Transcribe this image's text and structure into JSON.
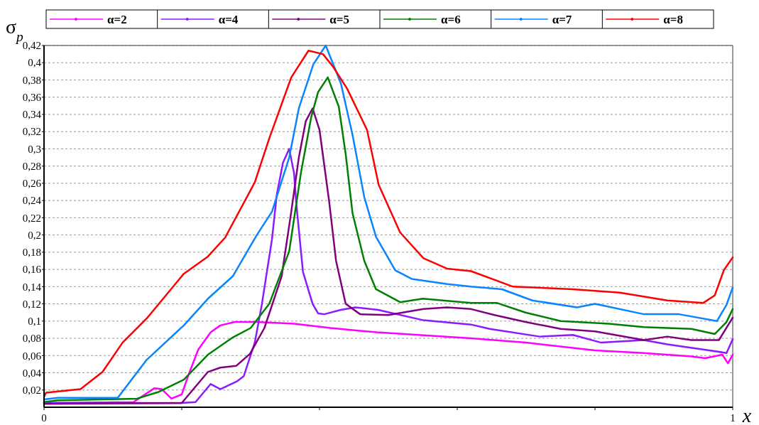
{
  "chart_data": {
    "type": "line",
    "xlabel": "x",
    "ylabel": "σ$_{p}$",
    "xlim": [
      0,
      1
    ],
    "ylim": [
      0,
      0.42
    ],
    "xticks": [
      0,
      {
        "value": 0.2,
        "label": null
      },
      {
        "value": 0.4,
        "label": null
      },
      {
        "value": 0.6,
        "label": null
      },
      {
        "value": 0.8,
        "label": null
      },
      1
    ],
    "yticks": [
      {
        "value": 0.02,
        "label": "0,02"
      },
      {
        "value": 0.04,
        "label": "0,04"
      },
      {
        "value": 0.06,
        "label": "0,06"
      },
      {
        "value": 0.08,
        "label": "0,08"
      },
      {
        "value": 0.1,
        "label": "0,1"
      },
      {
        "value": 0.12,
        "label": "0,12"
      },
      {
        "value": 0.14,
        "label": "0,14"
      },
      {
        "value": 0.16,
        "label": "0,16"
      },
      {
        "value": 0.18,
        "label": "0,18"
      },
      {
        "value": 0.2,
        "label": "0,2"
      },
      {
        "value": 0.22,
        "label": "0,22"
      },
      {
        "value": 0.24,
        "label": "0,24"
      },
      {
        "value": 0.26,
        "label": "0,26"
      },
      {
        "value": 0.28,
        "label": "0,28"
      },
      {
        "value": 0.3,
        "label": "0,3"
      },
      {
        "value": 0.32,
        "label": "0,32"
      },
      {
        "value": 0.34,
        "label": "0,34"
      },
      {
        "value": 0.36,
        "label": "0,36"
      },
      {
        "value": 0.38,
        "label": "0,38"
      },
      {
        "value": 0.4,
        "label": "0,4"
      },
      {
        "value": 0.42,
        "label": "0,42"
      }
    ],
    "grid": "y",
    "legend": "top",
    "line_style": "solid",
    "series": [
      {
        "name": "α=2",
        "color": "#ff00ff",
        "x": [
          0,
          0.13,
          0.16,
          0.171,
          0.185,
          0.2,
          0.21,
          0.224,
          0.242,
          0.256,
          0.277,
          0.309,
          0.363,
          0.416,
          0.483,
          0.62,
          0.7,
          0.8,
          0.871,
          0.94,
          0.96,
          0.985,
          0.993,
          1
        ],
        "values": [
          0.005,
          0.006,
          0.022,
          0.021,
          0.01,
          0.015,
          0.038,
          0.067,
          0.087,
          0.095,
          0.099,
          0.099,
          0.097,
          0.092,
          0.087,
          0.08,
          0.075,
          0.066,
          0.063,
          0.059,
          0.057,
          0.061,
          0.051,
          0.061
        ]
      },
      {
        "name": "α=4",
        "color": "#8c1aff",
        "x": [
          0,
          0.2,
          0.22,
          0.242,
          0.256,
          0.28,
          0.29,
          0.306,
          0.316,
          0.331,
          0.338,
          0.347,
          0.356,
          0.363,
          0.366,
          0.376,
          0.39,
          0.398,
          0.407,
          0.431,
          0.452,
          0.485,
          0.551,
          0.62,
          0.647,
          0.72,
          0.768,
          0.809,
          0.871,
          0.905,
          0.957,
          0.991,
          1
        ],
        "values": [
          0.005,
          0.005,
          0.006,
          0.027,
          0.021,
          0.03,
          0.036,
          0.075,
          0.118,
          0.195,
          0.247,
          0.284,
          0.3,
          0.272,
          0.239,
          0.157,
          0.12,
          0.109,
          0.108,
          0.113,
          0.116,
          0.113,
          0.101,
          0.096,
          0.091,
          0.082,
          0.084,
          0.075,
          0.078,
          0.073,
          0.067,
          0.063,
          0.079
        ]
      },
      {
        "name": "α=5",
        "color": "#800080",
        "x": [
          0,
          0.2,
          0.238,
          0.256,
          0.279,
          0.299,
          0.32,
          0.345,
          0.359,
          0.37,
          0.38,
          0.39,
          0.4,
          0.414,
          0.424,
          0.438,
          0.459,
          0.5,
          0.551,
          0.585,
          0.62,
          0.654,
          0.699,
          0.75,
          0.8,
          0.871,
          0.905,
          0.94,
          0.98,
          1
        ],
        "values": [
          0.004,
          0.005,
          0.041,
          0.046,
          0.048,
          0.062,
          0.092,
          0.152,
          0.227,
          0.29,
          0.332,
          0.347,
          0.322,
          0.239,
          0.17,
          0.12,
          0.108,
          0.107,
          0.114,
          0.116,
          0.114,
          0.107,
          0.099,
          0.091,
          0.088,
          0.078,
          0.082,
          0.078,
          0.078,
          0.104
        ]
      },
      {
        "name": "α=6",
        "color": "#008000",
        "x": [
          0,
          0.02,
          0.135,
          0.167,
          0.203,
          0.238,
          0.274,
          0.3,
          0.327,
          0.356,
          0.373,
          0.388,
          0.398,
          0.412,
          0.428,
          0.438,
          0.448,
          0.465,
          0.482,
          0.517,
          0.55,
          0.62,
          0.658,
          0.699,
          0.75,
          0.82,
          0.871,
          0.94,
          0.974,
          0.991,
          1
        ],
        "values": [
          0.006,
          0.008,
          0.01,
          0.018,
          0.032,
          0.061,
          0.081,
          0.092,
          0.12,
          0.181,
          0.272,
          0.337,
          0.366,
          0.383,
          0.349,
          0.294,
          0.225,
          0.17,
          0.137,
          0.122,
          0.126,
          0.121,
          0.121,
          0.11,
          0.1,
          0.097,
          0.093,
          0.091,
          0.085,
          0.099,
          0.114
        ]
      },
      {
        "name": "α=7",
        "color": "#0a84ff",
        "x": [
          0,
          0.02,
          0.107,
          0.149,
          0.203,
          0.238,
          0.274,
          0.309,
          0.331,
          0.356,
          0.37,
          0.391,
          0.409,
          0.431,
          0.448,
          0.465,
          0.482,
          0.51,
          0.534,
          0.586,
          0.62,
          0.665,
          0.709,
          0.774,
          0.8,
          0.871,
          0.922,
          0.977,
          0.991,
          1
        ],
        "values": [
          0.009,
          0.011,
          0.011,
          0.055,
          0.095,
          0.126,
          0.152,
          0.2,
          0.227,
          0.29,
          0.347,
          0.398,
          0.42,
          0.376,
          0.316,
          0.244,
          0.198,
          0.159,
          0.149,
          0.143,
          0.14,
          0.137,
          0.124,
          0.116,
          0.12,
          0.108,
          0.108,
          0.1,
          0.119,
          0.139
        ]
      },
      {
        "name": "α=8",
        "color": "#ff0000",
        "x": [
          0,
          0.003,
          0.053,
          0.085,
          0.114,
          0.149,
          0.203,
          0.238,
          0.263,
          0.306,
          0.327,
          0.359,
          0.384,
          0.405,
          0.42,
          0.44,
          0.469,
          0.486,
          0.517,
          0.551,
          0.585,
          0.62,
          0.681,
          0.768,
          0.836,
          0.905,
          0.957,
          0.974,
          0.987,
          1
        ],
        "values": [
          0.012,
          0.017,
          0.021,
          0.041,
          0.075,
          0.103,
          0.155,
          0.175,
          0.197,
          0.261,
          0.312,
          0.383,
          0.414,
          0.41,
          0.395,
          0.37,
          0.322,
          0.258,
          0.203,
          0.173,
          0.161,
          0.158,
          0.14,
          0.137,
          0.133,
          0.124,
          0.121,
          0.13,
          0.159,
          0.174
        ]
      }
    ]
  }
}
